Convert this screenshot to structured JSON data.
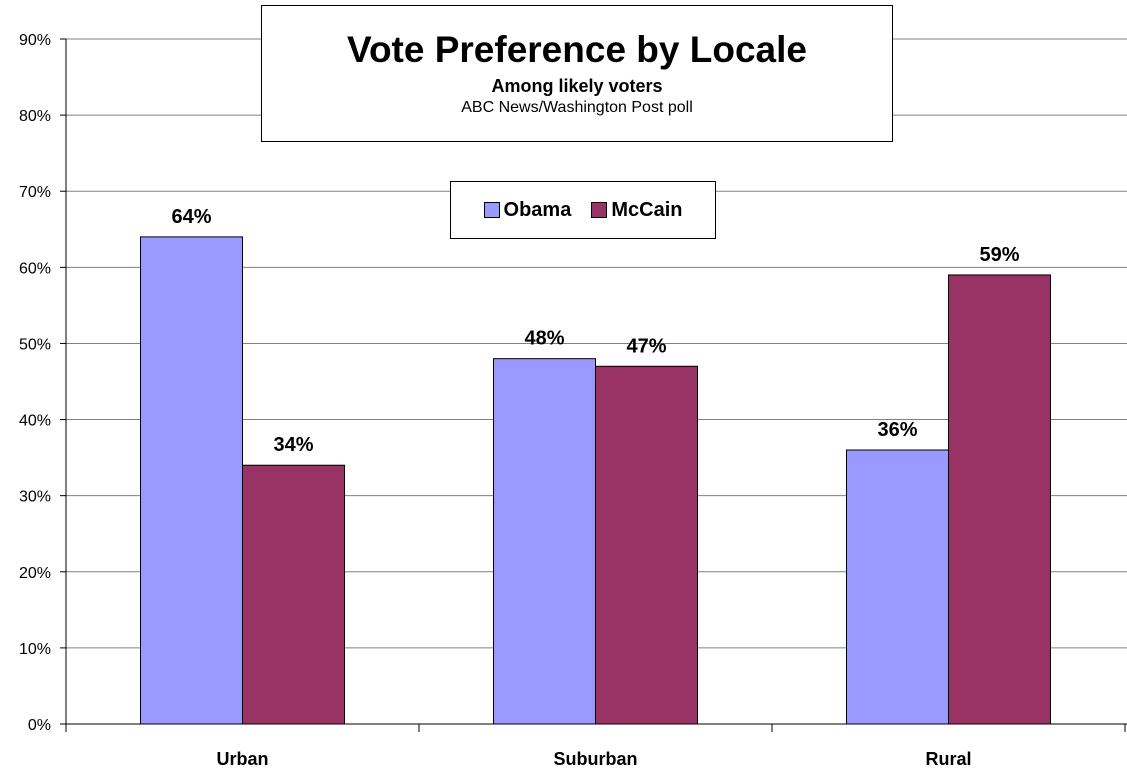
{
  "chart_data": {
    "type": "bar",
    "title": "Vote Preference by Locale",
    "subtitle": "Among likely voters",
    "source": "ABC News/Washington Post poll",
    "categories": [
      "Urban",
      "Suburban",
      "Rural"
    ],
    "series": [
      {
        "name": "Obama",
        "values": [
          64,
          48,
          36
        ],
        "color": "#9999ff",
        "labels": [
          "64%",
          "48%",
          "36%"
        ]
      },
      {
        "name": "McCain",
        "values": [
          34,
          47,
          59
        ],
        "color": "#993366",
        "labels": [
          "34%",
          "47%",
          "59%"
        ]
      }
    ],
    "ylim": [
      0,
      90
    ],
    "yticks": [
      0,
      10,
      20,
      30,
      40,
      50,
      60,
      70,
      80,
      90
    ],
    "ytick_labels": [
      "0%",
      "10%",
      "20%",
      "30%",
      "40%",
      "50%",
      "60%",
      "70%",
      "80%",
      "90%"
    ],
    "grid": "horizontal",
    "legend_position": "top-center"
  }
}
